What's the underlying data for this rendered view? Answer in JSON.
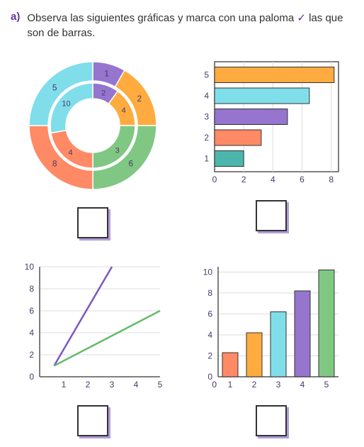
{
  "question": {
    "label": "a)",
    "text_before": "Observa las siguientes gráficas y marca con una paloma",
    "check": "✓",
    "text_after": "las que son de barras."
  },
  "colors": {
    "purple": "#9575cd",
    "orange": "#ffab40",
    "teal": "#4db6ac",
    "coral": "#ff8a65",
    "green": "#81c784",
    "lightblue": "#80deea",
    "darkpurple": "#7e57c2",
    "darkgreen": "#66bb6a",
    "axis": "#555",
    "grid": "#ddd",
    "label": "#4a3a6a"
  },
  "donut": {
    "outer_labels": [
      "1",
      "2",
      "6",
      "8",
      "5"
    ],
    "inner_labels": [
      "2",
      "4",
      "3",
      "4",
      "10"
    ],
    "segments": [
      {
        "color": "#9575cd",
        "start": -90,
        "len": 30
      },
      {
        "color": "#ffab40",
        "start": -60,
        "len": 60
      },
      {
        "color": "#81c784",
        "start": 0,
        "len": 90
      },
      {
        "color": "#ff8a65",
        "start": 90,
        "len": 90
      },
      {
        "color": "#80deea",
        "start": 180,
        "len": 90
      }
    ],
    "inner_segments": [
      {
        "color": "#9575cd",
        "start": -90,
        "len": 36
      },
      {
        "color": "#ffab40",
        "start": -54,
        "len": 54
      },
      {
        "color": "#81c784",
        "start": 0,
        "len": 90
      },
      {
        "color": "#ff8a65",
        "start": 90,
        "len": 80
      },
      {
        "color": "#80deea",
        "start": 170,
        "len": 100
      }
    ]
  },
  "hbar": {
    "ylabels": [
      "5",
      "4",
      "3",
      "2",
      "1"
    ],
    "xlabels": [
      "0",
      "2",
      "4",
      "6",
      "8"
    ],
    "bars": [
      {
        "y": 5,
        "val": 8.2,
        "color": "#ffab40"
      },
      {
        "y": 4,
        "val": 6.5,
        "color": "#80deea"
      },
      {
        "y": 3,
        "val": 5.0,
        "color": "#9575cd"
      },
      {
        "y": 2,
        "val": 3.2,
        "color": "#ff8a65"
      },
      {
        "y": 1,
        "val": 2.0,
        "color": "#4db6ac"
      }
    ],
    "xmax": 8.5
  },
  "line": {
    "ylabels": [
      "0",
      "2",
      "4",
      "6",
      "8",
      "10"
    ],
    "xlabels": [
      "1",
      "2",
      "3",
      "4",
      "5"
    ],
    "series": [
      {
        "color": "#7e57c2",
        "points": [
          [
            0.6,
            1
          ],
          [
            3,
            10
          ]
        ]
      },
      {
        "color": "#66bb6a",
        "points": [
          [
            0.6,
            1
          ],
          [
            5,
            6
          ]
        ]
      }
    ],
    "ymax": 10,
    "xmax": 5
  },
  "vbar": {
    "ylabels": [
      "0",
      "2",
      "4",
      "6",
      "8",
      "10"
    ],
    "xlabels": [
      "1",
      "2",
      "3",
      "4",
      "5"
    ],
    "bars": [
      {
        "x": 1,
        "val": 2.3,
        "color": "#ff8a65"
      },
      {
        "x": 2,
        "val": 4.2,
        "color": "#ffab40"
      },
      {
        "x": 3,
        "val": 6.2,
        "color": "#80deea"
      },
      {
        "x": 4,
        "val": 8.2,
        "color": "#9575cd"
      },
      {
        "x": 5,
        "val": 10.2,
        "color": "#81c784"
      }
    ],
    "ymax": 10.5
  }
}
